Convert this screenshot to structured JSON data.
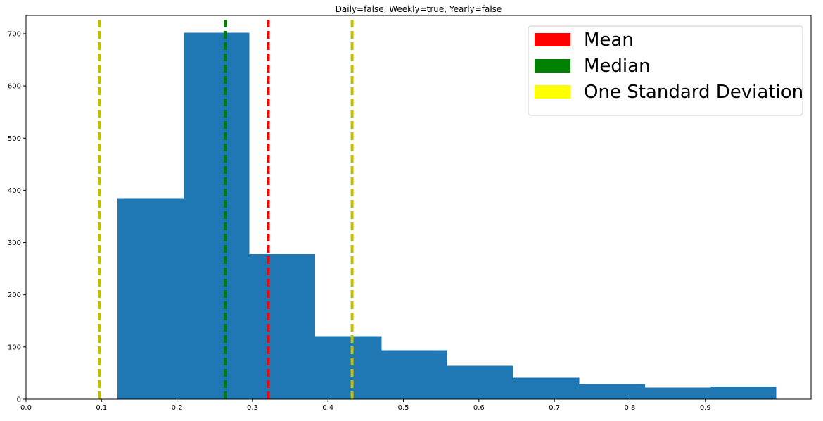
{
  "chart_data": {
    "type": "bar",
    "title": "Daily=false, Weekly=true, Yearly=false",
    "xlabel": "",
    "ylabel": "",
    "xlim": [
      0.0,
      1.04
    ],
    "ylim": [
      0,
      735
    ],
    "xticks": [
      "0.0",
      "0.1",
      "0.2",
      "0.3",
      "0.4",
      "0.5",
      "0.6",
      "0.7",
      "0.8",
      "0.9"
    ],
    "yticks": [
      "0",
      "100",
      "200",
      "300",
      "400",
      "500",
      "600",
      "700"
    ],
    "bins": [
      {
        "x0": 0.121,
        "x1": 0.209,
        "count": 385
      },
      {
        "x0": 0.209,
        "x1": 0.296,
        "count": 702
      },
      {
        "x0": 0.296,
        "x1": 0.383,
        "count": 278
      },
      {
        "x0": 0.383,
        "x1": 0.471,
        "count": 121
      },
      {
        "x0": 0.471,
        "x1": 0.558,
        "count": 94
      },
      {
        "x0": 0.558,
        "x1": 0.645,
        "count": 64
      },
      {
        "x0": 0.645,
        "x1": 0.733,
        "count": 41
      },
      {
        "x0": 0.733,
        "x1": 0.82,
        "count": 29
      },
      {
        "x0": 0.82,
        "x1": 0.907,
        "count": 22
      },
      {
        "x0": 0.907,
        "x1": 0.994,
        "count": 24
      }
    ],
    "bar_color": "#1f77b4",
    "vlines": [
      {
        "name": "one-std-lower",
        "x": 0.097,
        "color": "#bfbf00"
      },
      {
        "name": "median",
        "x": 0.264,
        "color": "#008000"
      },
      {
        "name": "mean",
        "x": 0.321,
        "color": "#ff0000"
      },
      {
        "name": "one-std-upper",
        "x": 0.432,
        "color": "#bfbf00"
      }
    ],
    "legend": {
      "placement": "top-right",
      "entries": [
        {
          "label": "Mean",
          "color": "#ff0000"
        },
        {
          "label": "Median",
          "color": "#008000"
        },
        {
          "label": "One Standard Deviation",
          "color": "#ffff00"
        }
      ]
    }
  }
}
